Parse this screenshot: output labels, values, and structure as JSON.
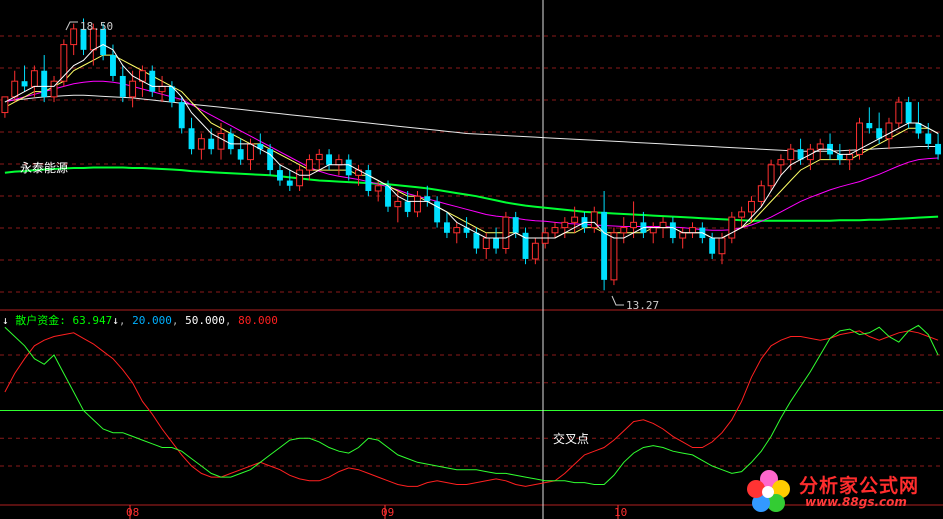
{
  "stock_name": "永泰能源",
  "indicator": {
    "arrow": "↓",
    "name": "散户资金:",
    "value": "63.947",
    "value_arrow": "↓",
    "levels": [
      "20.000",
      "50.000",
      "80.000"
    ],
    "name_color": "#00ff00",
    "level_colors": [
      "#00b0ff",
      "#ffffff",
      "#ff2020"
    ]
  },
  "annotations": {
    "high": "18.50",
    "low": "13.27",
    "cross": "交叉点"
  },
  "months": [
    "08",
    "09",
    "10"
  ],
  "logo": {
    "title": "分析家公式网",
    "url": "www.88gs.com"
  },
  "colors": {
    "up": "#ff3030",
    "down": "#00e0ff",
    "ma_fast": "#ffffff",
    "ma_mid": "#ffff66",
    "ma_slow": "#ff00ff",
    "ma_long": "#00ff33",
    "ind_red": "#ff2020",
    "ind_green": "#30ff30"
  },
  "chart_data": {
    "type": "candlestick",
    "y_range": [
      13.0,
      18.7
    ],
    "indicator_range": [
      0,
      100
    ],
    "reference_lines": [
      20,
      50,
      80
    ],
    "candles": [
      [
        16.7,
        17.0,
        16.6,
        17.0
      ],
      [
        17.0,
        17.5,
        16.9,
        17.3
      ],
      [
        17.3,
        17.6,
        17.1,
        17.2
      ],
      [
        17.2,
        17.6,
        17.0,
        17.5
      ],
      [
        17.5,
        17.8,
        16.9,
        17.0
      ],
      [
        17.0,
        17.4,
        16.9,
        17.3
      ],
      [
        17.3,
        18.1,
        17.2,
        18.0
      ],
      [
        18.0,
        18.4,
        17.8,
        18.3
      ],
      [
        18.3,
        18.5,
        17.8,
        17.9
      ],
      [
        17.9,
        18.4,
        17.6,
        18.3
      ],
      [
        18.3,
        18.4,
        17.7,
        17.8
      ],
      [
        17.8,
        18.0,
        17.3,
        17.4
      ],
      [
        17.4,
        17.6,
        16.9,
        17.0
      ],
      [
        17.0,
        17.5,
        16.8,
        17.3
      ],
      [
        17.3,
        17.6,
        17.0,
        17.5
      ],
      [
        17.5,
        17.6,
        17.0,
        17.1
      ],
      [
        17.1,
        17.4,
        16.9,
        17.2
      ],
      [
        17.2,
        17.3,
        16.8,
        16.9
      ],
      [
        16.9,
        17.0,
        16.3,
        16.4
      ],
      [
        16.4,
        16.6,
        15.9,
        16.0
      ],
      [
        16.0,
        16.3,
        15.8,
        16.2
      ],
      [
        16.2,
        16.4,
        15.9,
        16.0
      ],
      [
        16.0,
        16.5,
        15.8,
        16.3
      ],
      [
        16.3,
        16.4,
        15.9,
        16.0
      ],
      [
        16.0,
        16.2,
        15.7,
        15.8
      ],
      [
        15.8,
        16.2,
        15.6,
        16.1
      ],
      [
        16.1,
        16.3,
        15.9,
        16.0
      ],
      [
        16.0,
        16.1,
        15.5,
        15.6
      ],
      [
        15.6,
        15.7,
        15.3,
        15.4
      ],
      [
        15.4,
        15.6,
        15.2,
        15.3
      ],
      [
        15.3,
        15.7,
        15.2,
        15.6
      ],
      [
        15.6,
        15.9,
        15.4,
        15.8
      ],
      [
        15.8,
        16.0,
        15.6,
        15.9
      ],
      [
        15.9,
        16.0,
        15.6,
        15.7
      ],
      [
        15.7,
        15.9,
        15.5,
        15.8
      ],
      [
        15.8,
        15.9,
        15.4,
        15.5
      ],
      [
        15.5,
        15.7,
        15.3,
        15.6
      ],
      [
        15.6,
        15.7,
        15.1,
        15.2
      ],
      [
        15.2,
        15.4,
        15.0,
        15.3
      ],
      [
        15.3,
        15.4,
        14.8,
        14.9
      ],
      [
        14.9,
        15.2,
        14.6,
        15.0
      ],
      [
        15.0,
        15.2,
        14.7,
        14.8
      ],
      [
        14.8,
        15.2,
        14.7,
        15.1
      ],
      [
        15.1,
        15.3,
        14.9,
        15.0
      ],
      [
        15.0,
        15.1,
        14.5,
        14.6
      ],
      [
        14.6,
        14.8,
        14.3,
        14.4
      ],
      [
        14.4,
        14.6,
        14.2,
        14.5
      ],
      [
        14.5,
        14.7,
        14.3,
        14.4
      ],
      [
        14.4,
        14.5,
        14.0,
        14.1
      ],
      [
        14.1,
        14.4,
        13.9,
        14.3
      ],
      [
        14.3,
        14.5,
        14.0,
        14.1
      ],
      [
        14.1,
        14.8,
        14.0,
        14.7
      ],
      [
        14.7,
        14.8,
        14.3,
        14.4
      ],
      [
        14.4,
        14.5,
        13.8,
        13.9
      ],
      [
        13.9,
        14.3,
        13.8,
        14.2
      ],
      [
        14.2,
        14.5,
        14.1,
        14.4
      ],
      [
        14.4,
        14.6,
        14.3,
        14.5
      ],
      [
        14.5,
        14.7,
        14.3,
        14.6
      ],
      [
        14.6,
        14.9,
        14.4,
        14.7
      ],
      [
        14.7,
        14.8,
        14.4,
        14.5
      ],
      [
        14.5,
        14.9,
        14.4,
        14.8
      ],
      [
        14.8,
        15.2,
        13.3,
        13.5
      ],
      [
        13.5,
        14.5,
        13.4,
        14.4
      ],
      [
        14.4,
        14.7,
        14.2,
        14.5
      ],
      [
        14.5,
        15.0,
        14.3,
        14.6
      ],
      [
        14.6,
        14.8,
        14.3,
        14.4
      ],
      [
        14.4,
        14.6,
        14.2,
        14.5
      ],
      [
        14.5,
        14.7,
        14.3,
        14.6
      ],
      [
        14.6,
        14.7,
        14.2,
        14.3
      ],
      [
        14.3,
        14.5,
        14.1,
        14.4
      ],
      [
        14.4,
        14.6,
        14.3,
        14.5
      ],
      [
        14.5,
        14.6,
        14.2,
        14.3
      ],
      [
        14.3,
        14.4,
        13.9,
        14.0
      ],
      [
        14.0,
        14.4,
        13.8,
        14.3
      ],
      [
        14.3,
        14.8,
        14.2,
        14.7
      ],
      [
        14.7,
        14.9,
        14.5,
        14.8
      ],
      [
        14.8,
        15.1,
        14.6,
        15.0
      ],
      [
        15.0,
        15.4,
        14.9,
        15.3
      ],
      [
        15.3,
        15.8,
        15.2,
        15.7
      ],
      [
        15.7,
        15.9,
        15.5,
        15.8
      ],
      [
        15.8,
        16.1,
        15.6,
        16.0
      ],
      [
        16.0,
        16.2,
        15.7,
        15.8
      ],
      [
        15.8,
        16.1,
        15.6,
        16.0
      ],
      [
        16.0,
        16.2,
        15.8,
        16.1
      ],
      [
        16.1,
        16.3,
        15.8,
        15.9
      ],
      [
        15.9,
        16.1,
        15.7,
        15.8
      ],
      [
        15.8,
        16.0,
        15.6,
        15.9
      ],
      [
        15.9,
        16.6,
        15.8,
        16.5
      ],
      [
        16.5,
        16.8,
        16.3,
        16.4
      ],
      [
        16.4,
        16.7,
        16.1,
        16.2
      ],
      [
        16.2,
        16.6,
        16.0,
        16.5
      ],
      [
        16.5,
        17.0,
        16.4,
        16.9
      ],
      [
        16.9,
        17.0,
        16.4,
        16.5
      ],
      [
        16.5,
        16.9,
        16.2,
        16.3
      ],
      [
        16.3,
        16.5,
        16.0,
        16.1
      ],
      [
        16.1,
        16.3,
        15.8,
        15.9
      ]
    ],
    "ma_fast": [
      16.9,
      17.0,
      17.1,
      17.2,
      17.2,
      17.2,
      17.4,
      17.6,
      17.7,
      17.9,
      18.0,
      17.9,
      17.6,
      17.4,
      17.3,
      17.2,
      17.2,
      17.2,
      17.0,
      16.7,
      16.5,
      16.3,
      16.2,
      16.1,
      16.1,
      16.1,
      16.0,
      15.9,
      15.7,
      15.6,
      15.5,
      15.5,
      15.6,
      15.7,
      15.7,
      15.7,
      15.6,
      15.5,
      15.4,
      15.3,
      15.1,
      15.0,
      15.0,
      15.0,
      14.9,
      14.8,
      14.6,
      14.5,
      14.4,
      14.3,
      14.3,
      14.3,
      14.4,
      14.3,
      14.3,
      14.3,
      14.3,
      14.4,
      14.5,
      14.6,
      14.6,
      14.4,
      14.3,
      14.3,
      14.4,
      14.5,
      14.5,
      14.5,
      14.5,
      14.4,
      14.4,
      14.4,
      14.3,
      14.3,
      14.4,
      14.5,
      14.7,
      14.9,
      15.2,
      15.5,
      15.7,
      15.8,
      15.9,
      16.0,
      16.0,
      15.9,
      15.9,
      16.0,
      16.1,
      16.2,
      16.3,
      16.4,
      16.5,
      16.5,
      16.4,
      16.3
    ],
    "ma_mid": [
      16.8,
      16.9,
      17.0,
      17.1,
      17.1,
      17.2,
      17.3,
      17.5,
      17.6,
      17.7,
      17.8,
      17.8,
      17.7,
      17.6,
      17.5,
      17.4,
      17.3,
      17.2,
      17.1,
      16.9,
      16.7,
      16.5,
      16.4,
      16.3,
      16.2,
      16.1,
      16.1,
      16.0,
      15.9,
      15.8,
      15.7,
      15.6,
      15.6,
      15.6,
      15.6,
      15.6,
      15.5,
      15.5,
      15.4,
      15.3,
      15.2,
      15.1,
      15.1,
      15.0,
      14.9,
      14.8,
      14.7,
      14.6,
      14.5,
      14.4,
      14.4,
      14.4,
      14.4,
      14.3,
      14.3,
      14.3,
      14.3,
      14.4,
      14.4,
      14.5,
      14.5,
      14.4,
      14.4,
      14.4,
      14.4,
      14.4,
      14.5,
      14.5,
      14.5,
      14.4,
      14.4,
      14.4,
      14.3,
      14.3,
      14.4,
      14.5,
      14.6,
      14.8,
      15.0,
      15.2,
      15.4,
      15.6,
      15.7,
      15.8,
      15.8,
      15.8,
      15.8,
      15.9,
      16.0,
      16.1,
      16.2,
      16.3,
      16.4,
      16.4,
      16.4,
      16.3
    ],
    "ma_slow": [
      16.9,
      16.95,
      17.0,
      17.05,
      17.1,
      17.15,
      17.2,
      17.25,
      17.28,
      17.3,
      17.3,
      17.28,
      17.25,
      17.2,
      17.15,
      17.1,
      17.05,
      17.0,
      16.95,
      16.85,
      16.75,
      16.65,
      16.55,
      16.45,
      16.35,
      16.25,
      16.15,
      16.05,
      15.95,
      15.85,
      15.75,
      15.65,
      15.58,
      15.52,
      15.48,
      15.45,
      15.42,
      15.38,
      15.33,
      15.28,
      15.22,
      15.15,
      15.1,
      15.05,
      15.0,
      14.95,
      14.9,
      14.85,
      14.8,
      14.75,
      14.72,
      14.7,
      14.68,
      14.65,
      14.63,
      14.62,
      14.6,
      14.58,
      14.57,
      14.56,
      14.55,
      14.54,
      14.53,
      14.52,
      14.52,
      14.52,
      14.52,
      14.52,
      14.51,
      14.5,
      14.48,
      14.46,
      14.45,
      14.45,
      14.46,
      14.5,
      14.55,
      14.62,
      14.7,
      14.8,
      14.9,
      15.0,
      15.08,
      15.15,
      15.22,
      15.28,
      15.33,
      15.38,
      15.45,
      15.52,
      15.6,
      15.68,
      15.75,
      15.8,
      15.82,
      15.83
    ],
    "ma_white": [
      16.92,
      16.94,
      16.96,
      16.98,
      17.0,
      17.01,
      17.02,
      17.03,
      17.03,
      17.02,
      17.01,
      17.0,
      16.99,
      16.98,
      16.96,
      16.94,
      16.92,
      16.9,
      16.88,
      16.86,
      16.84,
      16.82,
      16.8,
      16.78,
      16.76,
      16.74,
      16.72,
      16.7,
      16.68,
      16.66,
      16.64,
      16.62,
      16.6,
      16.58,
      16.56,
      16.54,
      16.52,
      16.5,
      16.48,
      16.46,
      16.44,
      16.42,
      16.4,
      16.38,
      16.36,
      16.34,
      16.32,
      16.3,
      16.29,
      16.28,
      16.27,
      16.26,
      16.25,
      16.24,
      16.23,
      16.22,
      16.21,
      16.2,
      16.19,
      16.18,
      16.17,
      16.16,
      16.15,
      16.14,
      16.13,
      16.12,
      16.11,
      16.1,
      16.09,
      16.08,
      16.07,
      16.06,
      16.05,
      16.04,
      16.03,
      16.02,
      16.01,
      16.0,
      15.99,
      15.98,
      15.97,
      15.96,
      15.96,
      15.96,
      15.96,
      15.97,
      15.98,
      15.99,
      16.0,
      16.01,
      16.02,
      16.03,
      16.04,
      16.05,
      16.05,
      16.05
    ],
    "ma_long": [
      15.55,
      15.57,
      15.58,
      15.6,
      15.61,
      15.62,
      15.63,
      15.64,
      15.64,
      15.65,
      15.65,
      15.65,
      15.65,
      15.64,
      15.64,
      15.63,
      15.62,
      15.61,
      15.6,
      15.58,
      15.57,
      15.56,
      15.55,
      15.54,
      15.53,
      15.52,
      15.51,
      15.5,
      15.48,
      15.46,
      15.44,
      15.42,
      15.4,
      15.39,
      15.38,
      15.37,
      15.36,
      15.35,
      15.34,
      15.33,
      15.31,
      15.29,
      15.27,
      15.25,
      15.22,
      15.19,
      15.16,
      15.13,
      15.1,
      15.06,
      15.02,
      14.98,
      14.95,
      14.92,
      14.9,
      14.88,
      14.86,
      14.84,
      14.82,
      14.8,
      14.79,
      14.78,
      14.77,
      14.76,
      14.75,
      14.74,
      14.73,
      14.72,
      14.71,
      14.7,
      14.69,
      14.68,
      14.67,
      14.66,
      14.65,
      14.64,
      14.63,
      14.63,
      14.63,
      14.63,
      14.63,
      14.63,
      14.63,
      14.63,
      14.63,
      14.64,
      14.64,
      14.64,
      14.65,
      14.65,
      14.66,
      14.67,
      14.68,
      14.69,
      14.7,
      14.71
    ],
    "ind_red": [
      60,
      70,
      78,
      85,
      88,
      90,
      91,
      92,
      89,
      86,
      82,
      78,
      72,
      65,
      55,
      48,
      40,
      33,
      26,
      20,
      16,
      14,
      14,
      16,
      18,
      20,
      22,
      20,
      18,
      15,
      13,
      12,
      12,
      14,
      17,
      19,
      18,
      16,
      14,
      12,
      10,
      9,
      9,
      11,
      12,
      11,
      10,
      10,
      11,
      12,
      13,
      12,
      10,
      9,
      10,
      11,
      12,
      16,
      21,
      26,
      28,
      30,
      34,
      39,
      44,
      45,
      43,
      40,
      36,
      33,
      30,
      30,
      33,
      38,
      45,
      55,
      68,
      78,
      85,
      88,
      90,
      90,
      89,
      88,
      89,
      91,
      92,
      93,
      90,
      88,
      90,
      92,
      93,
      92,
      90,
      88
    ],
    "ind_green": [
      95,
      90,
      85,
      78,
      75,
      80,
      70,
      60,
      50,
      45,
      40,
      38,
      38,
      36,
      34,
      32,
      30,
      30,
      28,
      24,
      20,
      16,
      14,
      14,
      16,
      18,
      22,
      26,
      30,
      34,
      35,
      35,
      33,
      30,
      28,
      27,
      30,
      35,
      34,
      30,
      26,
      24,
      22,
      21,
      20,
      19,
      18,
      18,
      18,
      17,
      16,
      16,
      15,
      14,
      13,
      12,
      12,
      12,
      11,
      11,
      10,
      10,
      15,
      22,
      27,
      30,
      31,
      30,
      28,
      27,
      26,
      23,
      20,
      18,
      16,
      17,
      22,
      28,
      36,
      46,
      55,
      63,
      71,
      80,
      89,
      93,
      94,
      91,
      92,
      95,
      90,
      87,
      93,
      96,
      91,
      80
    ]
  }
}
